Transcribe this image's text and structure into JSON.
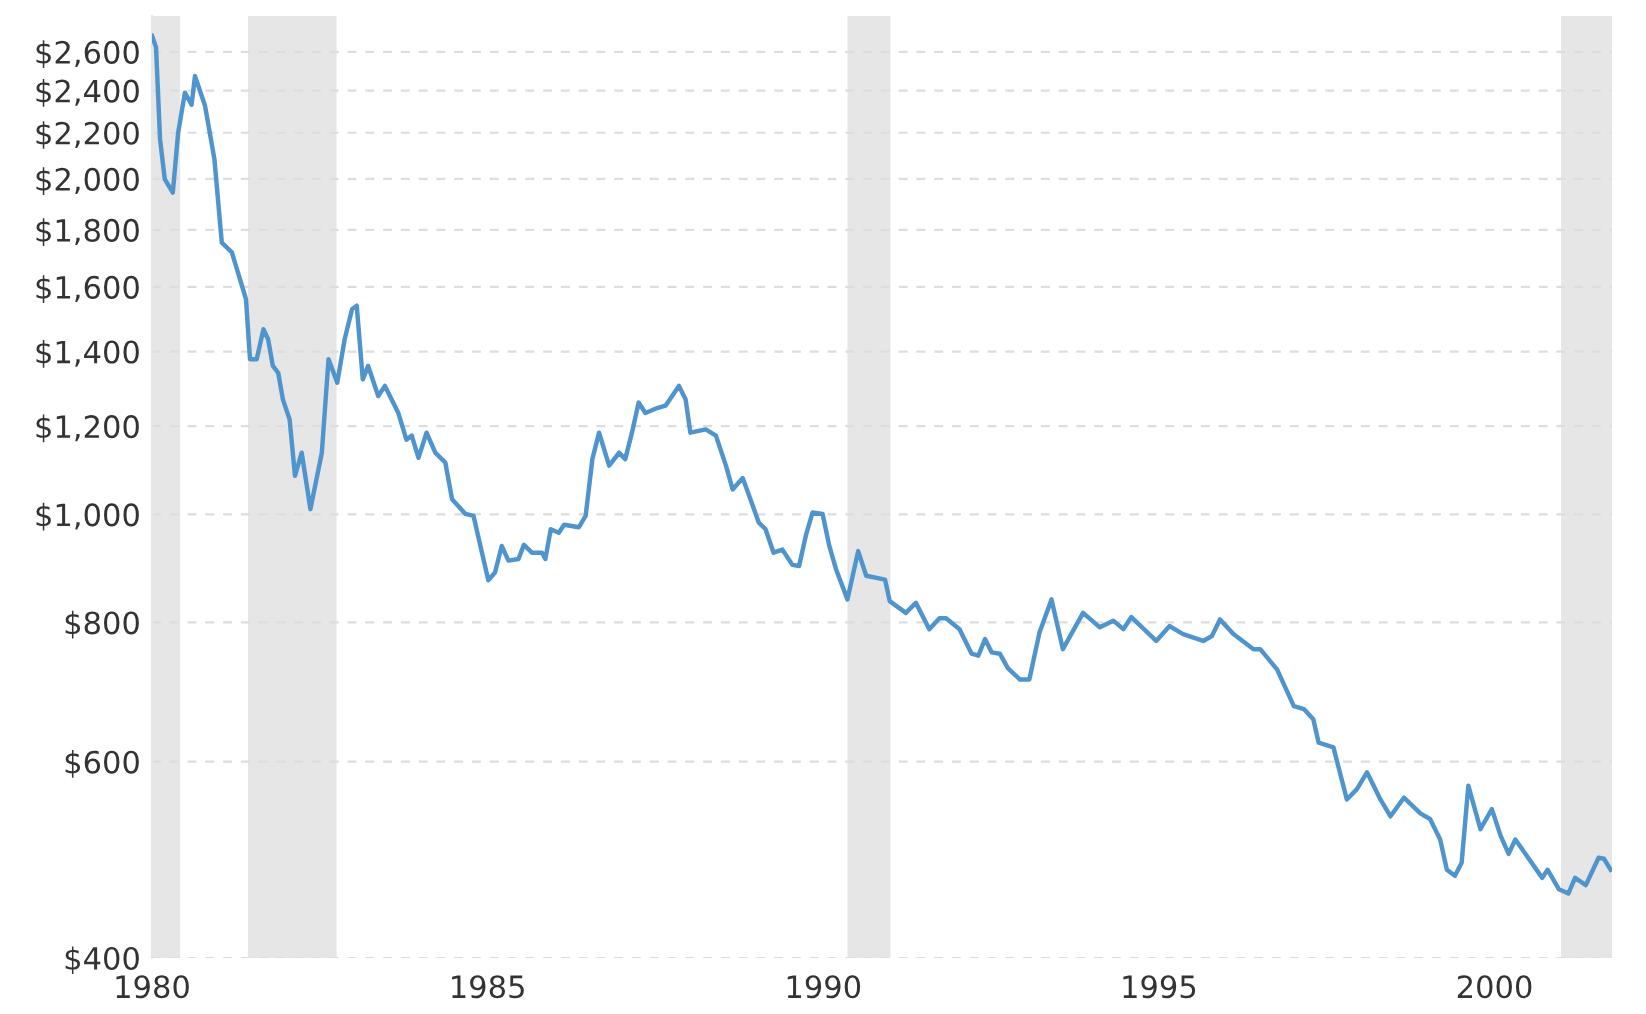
{
  "chart_data": {
    "type": "line",
    "log": true,
    "grid": "y",
    "line_style": "solid",
    "marker": "none",
    "xlim": [
      1980,
      2001.75
    ],
    "xticks": [
      1980,
      1985,
      1990,
      1995,
      2000
    ],
    "ylim": [
      400,
      2800
    ],
    "yticks": [
      {
        "value": 400,
        "label": "$400"
      },
      {
        "value": 600,
        "label": "$600"
      },
      {
        "value": 800,
        "label": "$800"
      },
      {
        "value": 1000,
        "label": "$1,000"
      },
      {
        "value": 1200,
        "label": "$1,200"
      },
      {
        "value": 1400,
        "label": "$1,400"
      },
      {
        "value": 1600,
        "label": "$1,600"
      },
      {
        "value": 1800,
        "label": "$1,800"
      },
      {
        "value": 2000,
        "label": "$2,000"
      },
      {
        "value": 2200,
        "label": "$2,200"
      },
      {
        "value": 2400,
        "label": "$2,400"
      },
      {
        "value": 2600,
        "label": "$2,600"
      }
    ],
    "bands": [
      {
        "axis": "x",
        "from": 1980.0,
        "to": 1980.42,
        "color": "#e6e6e6"
      },
      {
        "axis": "x",
        "from": 1981.43,
        "to": 1982.75,
        "color": "#e6e6e6"
      },
      {
        "axis": "x",
        "from": 1990.36,
        "to": 1991.0,
        "color": "#e6e6e6"
      },
      {
        "axis": "x",
        "from": 2000.99,
        "to": 2001.75,
        "color": "#e6e6e6"
      }
    ],
    "x": [
      1980.0,
      1980.06,
      1980.12,
      1980.19,
      1980.31,
      1980.39,
      1980.49,
      1980.59,
      1980.64,
      1980.79,
      1980.93,
      1981.04,
      1981.19,
      1981.4,
      1981.46,
      1981.56,
      1981.66,
      1981.73,
      1981.8,
      1981.88,
      1981.95,
      1982.05,
      1982.13,
      1982.23,
      1982.36,
      1982.53,
      1982.63,
      1982.76,
      1982.87,
      1982.98,
      1983.05,
      1983.14,
      1983.22,
      1983.37,
      1983.47,
      1983.67,
      1983.79,
      1983.87,
      1983.97,
      1984.09,
      1984.22,
      1984.37,
      1984.47,
      1984.67,
      1984.79,
      1985.01,
      1985.11,
      1985.21,
      1985.31,
      1985.46,
      1985.54,
      1985.66,
      1985.81,
      1985.86,
      1985.94,
      1986.06,
      1986.14,
      1986.36,
      1986.46,
      1986.56,
      1986.66,
      1986.81,
      1986.96,
      1987.05,
      1987.15,
      1987.25,
      1987.35,
      1987.5,
      1987.65,
      1987.85,
      1987.95,
      1988.02,
      1988.25,
      1988.4,
      1988.55,
      1988.65,
      1988.8,
      1988.95,
      1989.04,
      1989.14,
      1989.26,
      1989.39,
      1989.54,
      1989.64,
      1989.74,
      1989.84,
      1989.99,
      1990.09,
      1990.19,
      1990.36,
      1990.52,
      1990.64,
      1990.92,
      1990.99,
      1991.23,
      1991.38,
      1991.58,
      1991.73,
      1991.83,
      1992.03,
      1992.21,
      1992.31,
      1992.41,
      1992.51,
      1992.63,
      1992.75,
      1992.93,
      1993.07,
      1993.22,
      1993.4,
      1993.57,
      1993.87,
      1994.12,
      1994.32,
      1994.47,
      1994.59,
      1994.96,
      1995.16,
      1995.36,
      1995.66,
      1995.79,
      1995.91,
      1996.11,
      1996.41,
      1996.51,
      1996.76,
      1997.01,
      1997.16,
      1997.3,
      1997.38,
      1997.6,
      1997.8,
      1997.95,
      1998.1,
      1998.3,
      1998.45,
      1998.65,
      1998.9,
      1999.04,
      1999.19,
      1999.29,
      1999.41,
      1999.51,
      1999.61,
      1999.79,
      1999.96,
      2000.09,
      2000.21,
      2000.31,
      2000.71,
      2000.79,
      2000.96,
      2001.1,
      2001.2,
      2001.36,
      2001.55,
      2001.63,
      2001.73
    ],
    "series": [
      {
        "color": "#4f94cd",
        "values": [
          2688,
          2625,
          2171,
          1999,
          1944,
          2201,
          2390,
          2331,
          2474,
          2326,
          2083,
          1753,
          1718,
          1560,
          1378,
          1378,
          1466,
          1436,
          1359,
          1340,
          1268,
          1217,
          1083,
          1136,
          1011,
          1136,
          1378,
          1313,
          1436,
          1528,
          1539,
          1322,
          1359,
          1277,
          1304,
          1233,
          1167,
          1177,
          1124,
          1184,
          1136,
          1113,
          1032,
          1001,
          997,
          873,
          887,
          937,
          909,
          912,
          939,
          924,
          924,
          912,
          970,
          963,
          979,
          974,
          997,
          1121,
          1184,
          1106,
          1136,
          1121,
          1184,
          1260,
          1233,
          1244,
          1252,
          1304,
          1268,
          1184,
          1192,
          1177,
          1106,
          1053,
          1078,
          1018,
          983,
          970,
          924,
          930,
          901,
          899,
          957,
          1004,
          1001,
          937,
          893,
          839,
          927,
          881,
          874,
          836,
          816,
          833,
          789,
          807,
          807,
          789,
          750,
          747,
          773,
          752,
          750,
          728,
          711,
          711,
          783,
          839,
          757,
          816,
          792,
          803,
          789,
          809,
          770,
          794,
          781,
          770,
          778,
          805,
          781,
          757,
          757,
          726,
          673,
          669,
          655,
          624,
          618,
          555,
          567,
          587,
          555,
          536,
          557,
          539,
          533,
          511,
          480,
          474,
          487,
          571,
          522,
          544,
          515,
          496,
          511,
          472,
          480,
          461,
          457,
          472,
          465,
          492,
          491,
          480
        ]
      }
    ]
  }
}
